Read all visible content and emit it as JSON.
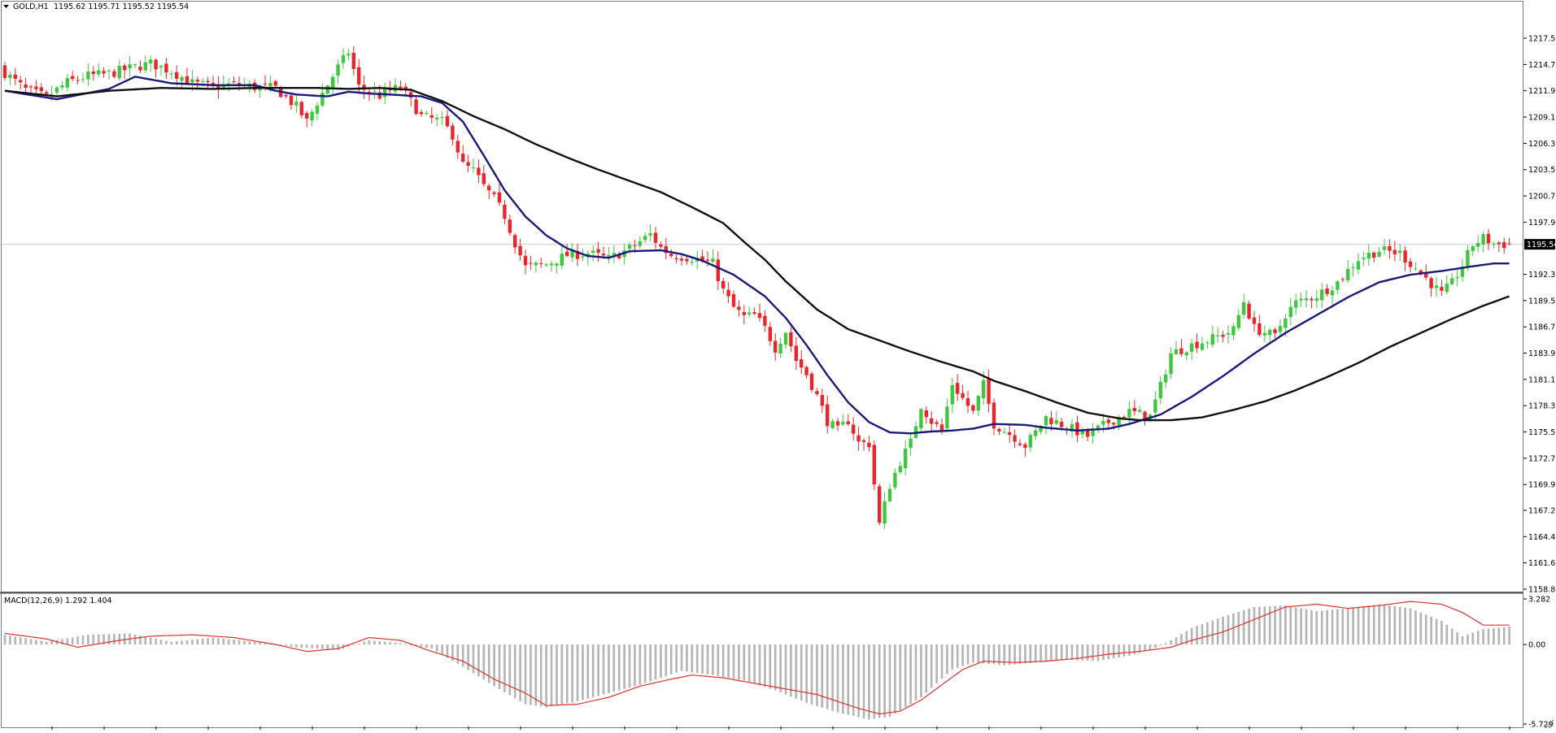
{
  "header": {
    "symbol": "GOLD,H1",
    "ohlc": "1195.62 1195.71 1195.52 1195.54"
  },
  "colors": {
    "bull_candle": "#3ec83e",
    "bear_candle": "#e8262b",
    "ma_fast": "#1a1a7a",
    "ma_slow": "#111111",
    "macd_signal": "#e03030",
    "macd_hist": "#b4b4b4",
    "frame": "#7a7a7a",
    "bid_line": "#cfcfcf",
    "price_label_bg": "#000000",
    "price_label_fg": "#ffffff"
  },
  "price_axis": {
    "ticks": [
      "1217.50",
      "1214.70",
      "1211.90",
      "1209.10",
      "1206.30",
      "1203.50",
      "1200.70",
      "1197.90",
      "1192.35",
      "1189.55",
      "1186.75",
      "1183.95",
      "1181.15",
      "1178.35",
      "1175.55",
      "1172.75",
      "1169.95",
      "1167.20",
      "1164.40",
      "1161.60",
      "1158.80"
    ],
    "current_label": "1195.54"
  },
  "macd_panel": {
    "label": "MACD(12,26,9) 1.292 1.404",
    "ticks": [
      "3.282",
      "0.00",
      "-5.729"
    ]
  },
  "chart_data": [
    {
      "type": "candlestick",
      "title": "GOLD,H1",
      "timeframe": "H1",
      "y_range": [
        1158.8,
        1220.3
      ],
      "last": {
        "open": 1195.62,
        "high": 1195.71,
        "low": 1195.52,
        "close": 1195.54
      },
      "close_path": [
        [
          0,
          1213.8
        ],
        [
          4,
          1212.0
        ],
        [
          8,
          1211.2
        ],
        [
          12,
          1212.8
        ],
        [
          16,
          1213.5
        ],
        [
          20,
          1213.7
        ],
        [
          24,
          1214.3
        ],
        [
          28,
          1214.8
        ],
        [
          32,
          1214.0
        ],
        [
          36,
          1212.7
        ],
        [
          40,
          1212.3
        ],
        [
          44,
          1212.6
        ],
        [
          48,
          1212.3
        ],
        [
          52,
          1212.2
        ],
        [
          56,
          1210.2
        ],
        [
          58,
          1208.6
        ],
        [
          60,
          1210.7
        ],
        [
          64,
          1214.4
        ],
        [
          66,
          1216.0
        ],
        [
          68,
          1212.3
        ],
        [
          72,
          1211.4
        ],
        [
          74,
          1211.9
        ],
        [
          76,
          1212.3
        ],
        [
          80,
          1209.2
        ],
        [
          84,
          1208.6
        ],
        [
          86,
          1207.2
        ],
        [
          88,
          1204.0
        ],
        [
          90,
          1203.4
        ],
        [
          92,
          1201.7
        ],
        [
          94,
          1200.4
        ],
        [
          96,
          1198.6
        ],
        [
          98,
          1195.7
        ],
        [
          100,
          1193.1
        ],
        [
          104,
          1193.4
        ],
        [
          108,
          1194.4
        ],
        [
          112,
          1194.6
        ],
        [
          116,
          1194.0
        ],
        [
          120,
          1195.1
        ],
        [
          124,
          1196.6
        ],
        [
          126,
          1195.2
        ],
        [
          128,
          1194.4
        ],
        [
          132,
          1194.1
        ],
        [
          136,
          1193.5
        ],
        [
          138,
          1190.6
        ],
        [
          140,
          1188.8
        ],
        [
          142,
          1187.8
        ],
        [
          144,
          1188.0
        ],
        [
          146,
          1186.6
        ],
        [
          148,
          1184.5
        ],
        [
          150,
          1186.3
        ],
        [
          152,
          1183.2
        ],
        [
          154,
          1181.7
        ],
        [
          156,
          1179.4
        ],
        [
          158,
          1176.7
        ],
        [
          160,
          1175.7
        ],
        [
          162,
          1176.8
        ],
        [
          164,
          1174.4
        ],
        [
          166,
          1174.3
        ],
        [
          168,
          1165.7
        ],
        [
          170,
          1169.9
        ],
        [
          172,
          1172.4
        ],
        [
          174,
          1174.4
        ],
        [
          176,
          1178.4
        ],
        [
          178,
          1176.7
        ],
        [
          180,
          1175.7
        ],
        [
          182,
          1180.7
        ],
        [
          184,
          1179.1
        ],
        [
          186,
          1177.6
        ],
        [
          188,
          1180.6
        ],
        [
          190,
          1176.4
        ],
        [
          194,
          1175.0
        ],
        [
          196,
          1174.1
        ],
        [
          198,
          1175.5
        ],
        [
          200,
          1177.1
        ],
        [
          204,
          1176.1
        ],
        [
          208,
          1175.1
        ],
        [
          212,
          1176.6
        ],
        [
          216,
          1177.7
        ],
        [
          220,
          1177.2
        ],
        [
          222,
          1180.4
        ],
        [
          224,
          1183.9
        ],
        [
          228,
          1184.8
        ],
        [
          232,
          1185.5
        ],
        [
          236,
          1186.4
        ],
        [
          238,
          1189.5
        ],
        [
          240,
          1186.6
        ],
        [
          244,
          1185.7
        ],
        [
          246,
          1188.1
        ],
        [
          248,
          1189.3
        ],
        [
          252,
          1190.1
        ],
        [
          256,
          1191.5
        ],
        [
          260,
          1194.0
        ],
        [
          264,
          1194.9
        ],
        [
          268,
          1194.6
        ],
        [
          270,
          1193.5
        ],
        [
          272,
          1192.5
        ],
        [
          276,
          1190.2
        ],
        [
          278,
          1191.4
        ],
        [
          280,
          1193.3
        ],
        [
          282,
          1195.5
        ],
        [
          284,
          1196.2
        ],
        [
          286,
          1195.6
        ],
        [
          289,
          1195.5
        ]
      ],
      "series": [
        {
          "kind": "moving_average",
          "values": [
            [
              0,
              1211.9
            ],
            [
              10,
              1211.0
            ],
            [
              20,
              1212.1
            ],
            [
              25,
              1213.4
            ],
            [
              32,
              1212.7
            ],
            [
              40,
              1212.5
            ],
            [
              48,
              1212.5
            ],
            [
              52,
              1211.9
            ],
            [
              56,
              1211.5
            ],
            [
              62,
              1211.3
            ],
            [
              66,
              1211.8
            ],
            [
              70,
              1211.6
            ],
            [
              74,
              1211.5
            ],
            [
              80,
              1211.3
            ],
            [
              84,
              1210.6
            ],
            [
              88,
              1208.6
            ],
            [
              92,
              1205.0
            ],
            [
              96,
              1201.3
            ],
            [
              100,
              1198.5
            ],
            [
              104,
              1196.5
            ],
            [
              108,
              1195.1
            ],
            [
              112,
              1194.3
            ],
            [
              116,
              1194.1
            ],
            [
              120,
              1194.8
            ],
            [
              126,
              1194.9
            ],
            [
              130,
              1194.5
            ],
            [
              134,
              1193.8
            ],
            [
              140,
              1192.3
            ],
            [
              146,
              1190.0
            ],
            [
              150,
              1187.7
            ],
            [
              154,
              1184.8
            ],
            [
              158,
              1181.6
            ],
            [
              162,
              1178.7
            ],
            [
              166,
              1176.6
            ],
            [
              170,
              1175.5
            ],
            [
              174,
              1175.4
            ],
            [
              178,
              1175.6
            ],
            [
              182,
              1175.7
            ],
            [
              186,
              1175.9
            ],
            [
              190,
              1176.4
            ],
            [
              196,
              1176.3
            ],
            [
              200,
              1176.0
            ],
            [
              206,
              1175.7
            ],
            [
              212,
              1175.9
            ],
            [
              216,
              1176.4
            ],
            [
              222,
              1177.4
            ],
            [
              228,
              1179.3
            ],
            [
              234,
              1181.5
            ],
            [
              240,
              1183.9
            ],
            [
              246,
              1186.1
            ],
            [
              252,
              1188.0
            ],
            [
              258,
              1189.9
            ],
            [
              264,
              1191.5
            ],
            [
              270,
              1192.3
            ],
            [
              276,
              1192.7
            ],
            [
              282,
              1193.2
            ],
            [
              286,
              1193.5
            ],
            [
              289,
              1193.5
            ]
          ]
        },
        {
          "kind": "moving_average",
          "values": [
            [
              0,
              1211.9
            ],
            [
              10,
              1211.3
            ],
            [
              20,
              1211.9
            ],
            [
              30,
              1212.2
            ],
            [
              40,
              1212.1
            ],
            [
              48,
              1212.2
            ],
            [
              54,
              1212.2
            ],
            [
              60,
              1212.2
            ],
            [
              66,
              1212.1
            ],
            [
              72,
              1212.2
            ],
            [
              78,
              1212.0
            ],
            [
              84,
              1210.8
            ],
            [
              90,
              1209.2
            ],
            [
              96,
              1207.8
            ],
            [
              102,
              1206.2
            ],
            [
              108,
              1204.8
            ],
            [
              114,
              1203.5
            ],
            [
              120,
              1202.3
            ],
            [
              126,
              1201.1
            ],
            [
              132,
              1199.5
            ],
            [
              138,
              1197.8
            ],
            [
              142,
              1195.8
            ],
            [
              146,
              1193.9
            ],
            [
              150,
              1191.6
            ],
            [
              156,
              1188.6
            ],
            [
              162,
              1186.5
            ],
            [
              168,
              1185.3
            ],
            [
              174,
              1184.1
            ],
            [
              180,
              1183.0
            ],
            [
              186,
              1182.0
            ],
            [
              190,
              1181.0
            ],
            [
              196,
              1179.9
            ],
            [
              202,
              1178.7
            ],
            [
              208,
              1177.6
            ],
            [
              214,
              1177.0
            ],
            [
              218,
              1176.8
            ],
            [
              224,
              1176.8
            ],
            [
              230,
              1177.1
            ],
            [
              236,
              1177.9
            ],
            [
              242,
              1178.8
            ],
            [
              248,
              1180.0
            ],
            [
              254,
              1181.4
            ],
            [
              260,
              1182.9
            ],
            [
              266,
              1184.6
            ],
            [
              272,
              1186.1
            ],
            [
              278,
              1187.6
            ],
            [
              284,
              1189.0
            ],
            [
              289,
              1190.0
            ]
          ]
        }
      ]
    },
    {
      "type": "bar",
      "title": "MACD(12,26,9) 1.292 1.404",
      "y_range": [
        -5.729,
        3.282
      ],
      "macd_path": [
        [
          0,
          0.7
        ],
        [
          8,
          0.2
        ],
        [
          16,
          0.7
        ],
        [
          24,
          0.8
        ],
        [
          32,
          0.2
        ],
        [
          40,
          0.5
        ],
        [
          48,
          0.2
        ],
        [
          56,
          -0.2
        ],
        [
          64,
          -0.4
        ],
        [
          70,
          0.3
        ],
        [
          76,
          0.1
        ],
        [
          82,
          -0.3
        ],
        [
          88,
          -1.6
        ],
        [
          94,
          -3.0
        ],
        [
          100,
          -4.3
        ],
        [
          104,
          -4.5
        ],
        [
          110,
          -4.1
        ],
        [
          116,
          -3.5
        ],
        [
          122,
          -2.9
        ],
        [
          126,
          -2.4
        ],
        [
          130,
          -1.9
        ],
        [
          136,
          -2.2
        ],
        [
          142,
          -2.6
        ],
        [
          148,
          -3.3
        ],
        [
          154,
          -4.2
        ],
        [
          160,
          -4.9
        ],
        [
          166,
          -5.4
        ],
        [
          170,
          -5.2
        ],
        [
          176,
          -3.8
        ],
        [
          182,
          -1.8
        ],
        [
          186,
          -1.3
        ],
        [
          192,
          -1.5
        ],
        [
          198,
          -1.3
        ],
        [
          204,
          -1.1
        ],
        [
          210,
          -1.2
        ],
        [
          216,
          -0.8
        ],
        [
          220,
          -0.4
        ],
        [
          224,
          0.3
        ],
        [
          228,
          1.2
        ],
        [
          234,
          2.0
        ],
        [
          240,
          2.7
        ],
        [
          246,
          2.8
        ],
        [
          252,
          2.4
        ],
        [
          258,
          2.6
        ],
        [
          264,
          2.9
        ],
        [
          270,
          2.6
        ],
        [
          276,
          1.7
        ],
        [
          280,
          0.6
        ],
        [
          284,
          1.1
        ],
        [
          289,
          1.3
        ]
      ],
      "signal_path": [
        [
          0,
          0.8
        ],
        [
          8,
          0.4
        ],
        [
          14,
          -0.2
        ],
        [
          22,
          0.3
        ],
        [
          28,
          0.6
        ],
        [
          36,
          0.7
        ],
        [
          44,
          0.5
        ],
        [
          52,
          0.0
        ],
        [
          58,
          -0.5
        ],
        [
          64,
          -0.3
        ],
        [
          70,
          0.5
        ],
        [
          76,
          0.3
        ],
        [
          82,
          -0.5
        ],
        [
          88,
          -1.2
        ],
        [
          94,
          -2.5
        ],
        [
          100,
          -3.5
        ],
        [
          104,
          -4.4
        ],
        [
          110,
          -4.3
        ],
        [
          116,
          -3.8
        ],
        [
          122,
          -3.0
        ],
        [
          128,
          -2.5
        ],
        [
          132,
          -2.2
        ],
        [
          138,
          -2.4
        ],
        [
          144,
          -2.8
        ],
        [
          150,
          -3.2
        ],
        [
          156,
          -3.6
        ],
        [
          160,
          -4.1
        ],
        [
          164,
          -4.6
        ],
        [
          168,
          -5.0
        ],
        [
          172,
          -4.8
        ],
        [
          176,
          -4.0
        ],
        [
          180,
          -2.9
        ],
        [
          184,
          -1.8
        ],
        [
          188,
          -1.2
        ],
        [
          194,
          -1.3
        ],
        [
          200,
          -1.2
        ],
        [
          206,
          -1.0
        ],
        [
          212,
          -0.7
        ],
        [
          218,
          -0.5
        ],
        [
          224,
          -0.2
        ],
        [
          228,
          0.3
        ],
        [
          234,
          0.9
        ],
        [
          240,
          1.8
        ],
        [
          246,
          2.7
        ],
        [
          252,
          2.9
        ],
        [
          258,
          2.6
        ],
        [
          264,
          2.8
        ],
        [
          270,
          3.1
        ],
        [
          276,
          2.9
        ],
        [
          280,
          2.3
        ],
        [
          284,
          1.4
        ],
        [
          289,
          1.4
        ]
      ]
    }
  ]
}
